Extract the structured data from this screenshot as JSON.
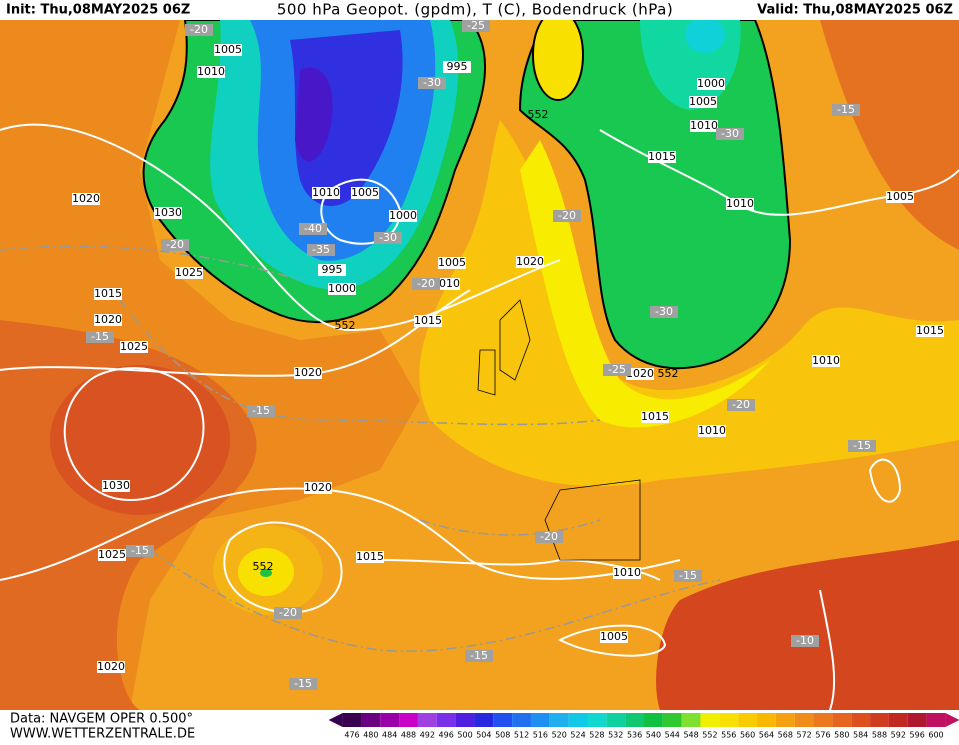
{
  "header": {
    "init": "Init: Thu,08MAY2025 06Z",
    "title": "500 hPa Geopot. (gpdm), T (C), Bodendruck (hPa)",
    "valid": "Valid: Thu,08MAY2025 06Z"
  },
  "footer": {
    "data": "Data: NAVGEM OPER 0.500°",
    "site": "WWW.WETTERZENTRALE.DE"
  },
  "isobar_labels": [
    "1005",
    "1010",
    "995",
    "1000",
    "1005",
    "1010",
    "1015",
    "1010",
    "1005",
    "1020",
    "1030",
    "1010",
    "1005",
    "1000",
    "995",
    "1000",
    "1005",
    "1010",
    "1020",
    "1025",
    "1015",
    "1020",
    "1025",
    "1015",
    "1020",
    "1020",
    "1015",
    "1010",
    "1010",
    "1015",
    "1030",
    "1020",
    "1025",
    "1015",
    "1010",
    "1005",
    "1020"
  ],
  "height_labels": [
    "552",
    "552",
    "552",
    "552"
  ],
  "temperature_labels": [
    "-20",
    "-25",
    "-30",
    "-15",
    "-30",
    "-40",
    "-30",
    "-35",
    "-20",
    "-20",
    "-20",
    "-15",
    "-30",
    "-25",
    "-15",
    "-20",
    "-15",
    "-20",
    "-15",
    "-20",
    "-15",
    "-15",
    "-10",
    "-15"
  ],
  "scale": {
    "values": [
      476,
      480,
      484,
      488,
      492,
      496,
      500,
      504,
      508,
      512,
      516,
      520,
      524,
      528,
      532,
      536,
      540,
      544,
      548,
      552,
      556,
      560,
      564,
      568,
      572,
      576,
      580,
      584,
      588,
      592,
      596,
      600
    ],
    "colors": [
      "#3a0050",
      "#6a0080",
      "#9a00a8",
      "#c800c8",
      "#a040e0",
      "#7830e8",
      "#5020e0",
      "#2828e0",
      "#2050f0",
      "#2070f0",
      "#2090f0",
      "#20b0f0",
      "#10c8e8",
      "#10d8d0",
      "#10d0a0",
      "#10c870",
      "#10c040",
      "#30c830",
      "#80e030",
      "#f0f000",
      "#f8e000",
      "#f8cc00",
      "#f8b800",
      "#f4a010",
      "#f08c18",
      "#ec7820",
      "#e46420",
      "#dc5020",
      "#d03c20",
      "#c02820",
      "#b01830",
      "#c01060"
    ]
  }
}
